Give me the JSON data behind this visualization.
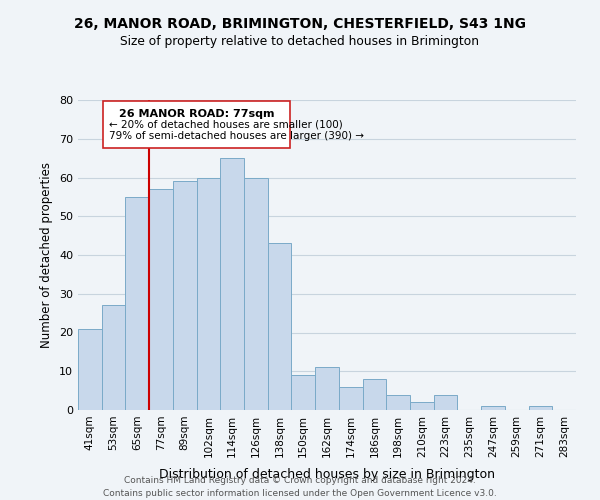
{
  "title": "26, MANOR ROAD, BRIMINGTON, CHESTERFIELD, S43 1NG",
  "subtitle": "Size of property relative to detached houses in Brimington",
  "xlabel": "Distribution of detached houses by size in Brimington",
  "ylabel": "Number of detached properties",
  "bar_color": "#c8d8eb",
  "bar_edge_color": "#7aaac8",
  "bins": [
    "41sqm",
    "53sqm",
    "65sqm",
    "77sqm",
    "89sqm",
    "102sqm",
    "114sqm",
    "126sqm",
    "138sqm",
    "150sqm",
    "162sqm",
    "174sqm",
    "186sqm",
    "198sqm",
    "210sqm",
    "223sqm",
    "235sqm",
    "247sqm",
    "259sqm",
    "271sqm",
    "283sqm"
  ],
  "values": [
    21,
    27,
    55,
    57,
    59,
    60,
    65,
    60,
    43,
    9,
    11,
    6,
    8,
    4,
    2,
    4,
    0,
    1,
    0,
    1,
    0
  ],
  "marker_idx": 3,
  "marker_label": "26 MANOR ROAD: 77sqm",
  "marker_line_color": "#cc0000",
  "annotation_line1": "← 20% of detached houses are smaller (100)",
  "annotation_line2": "79% of semi-detached houses are larger (390) →",
  "ylim": [
    0,
    80
  ],
  "footer1": "Contains HM Land Registry data © Crown copyright and database right 2024.",
  "footer2": "Contains public sector information licensed under the Open Government Licence v3.0.",
  "bg_color": "#f0f4f8",
  "grid_color": "#c8d4de",
  "box_edge_color": "#cc2222",
  "box_fill": "white"
}
